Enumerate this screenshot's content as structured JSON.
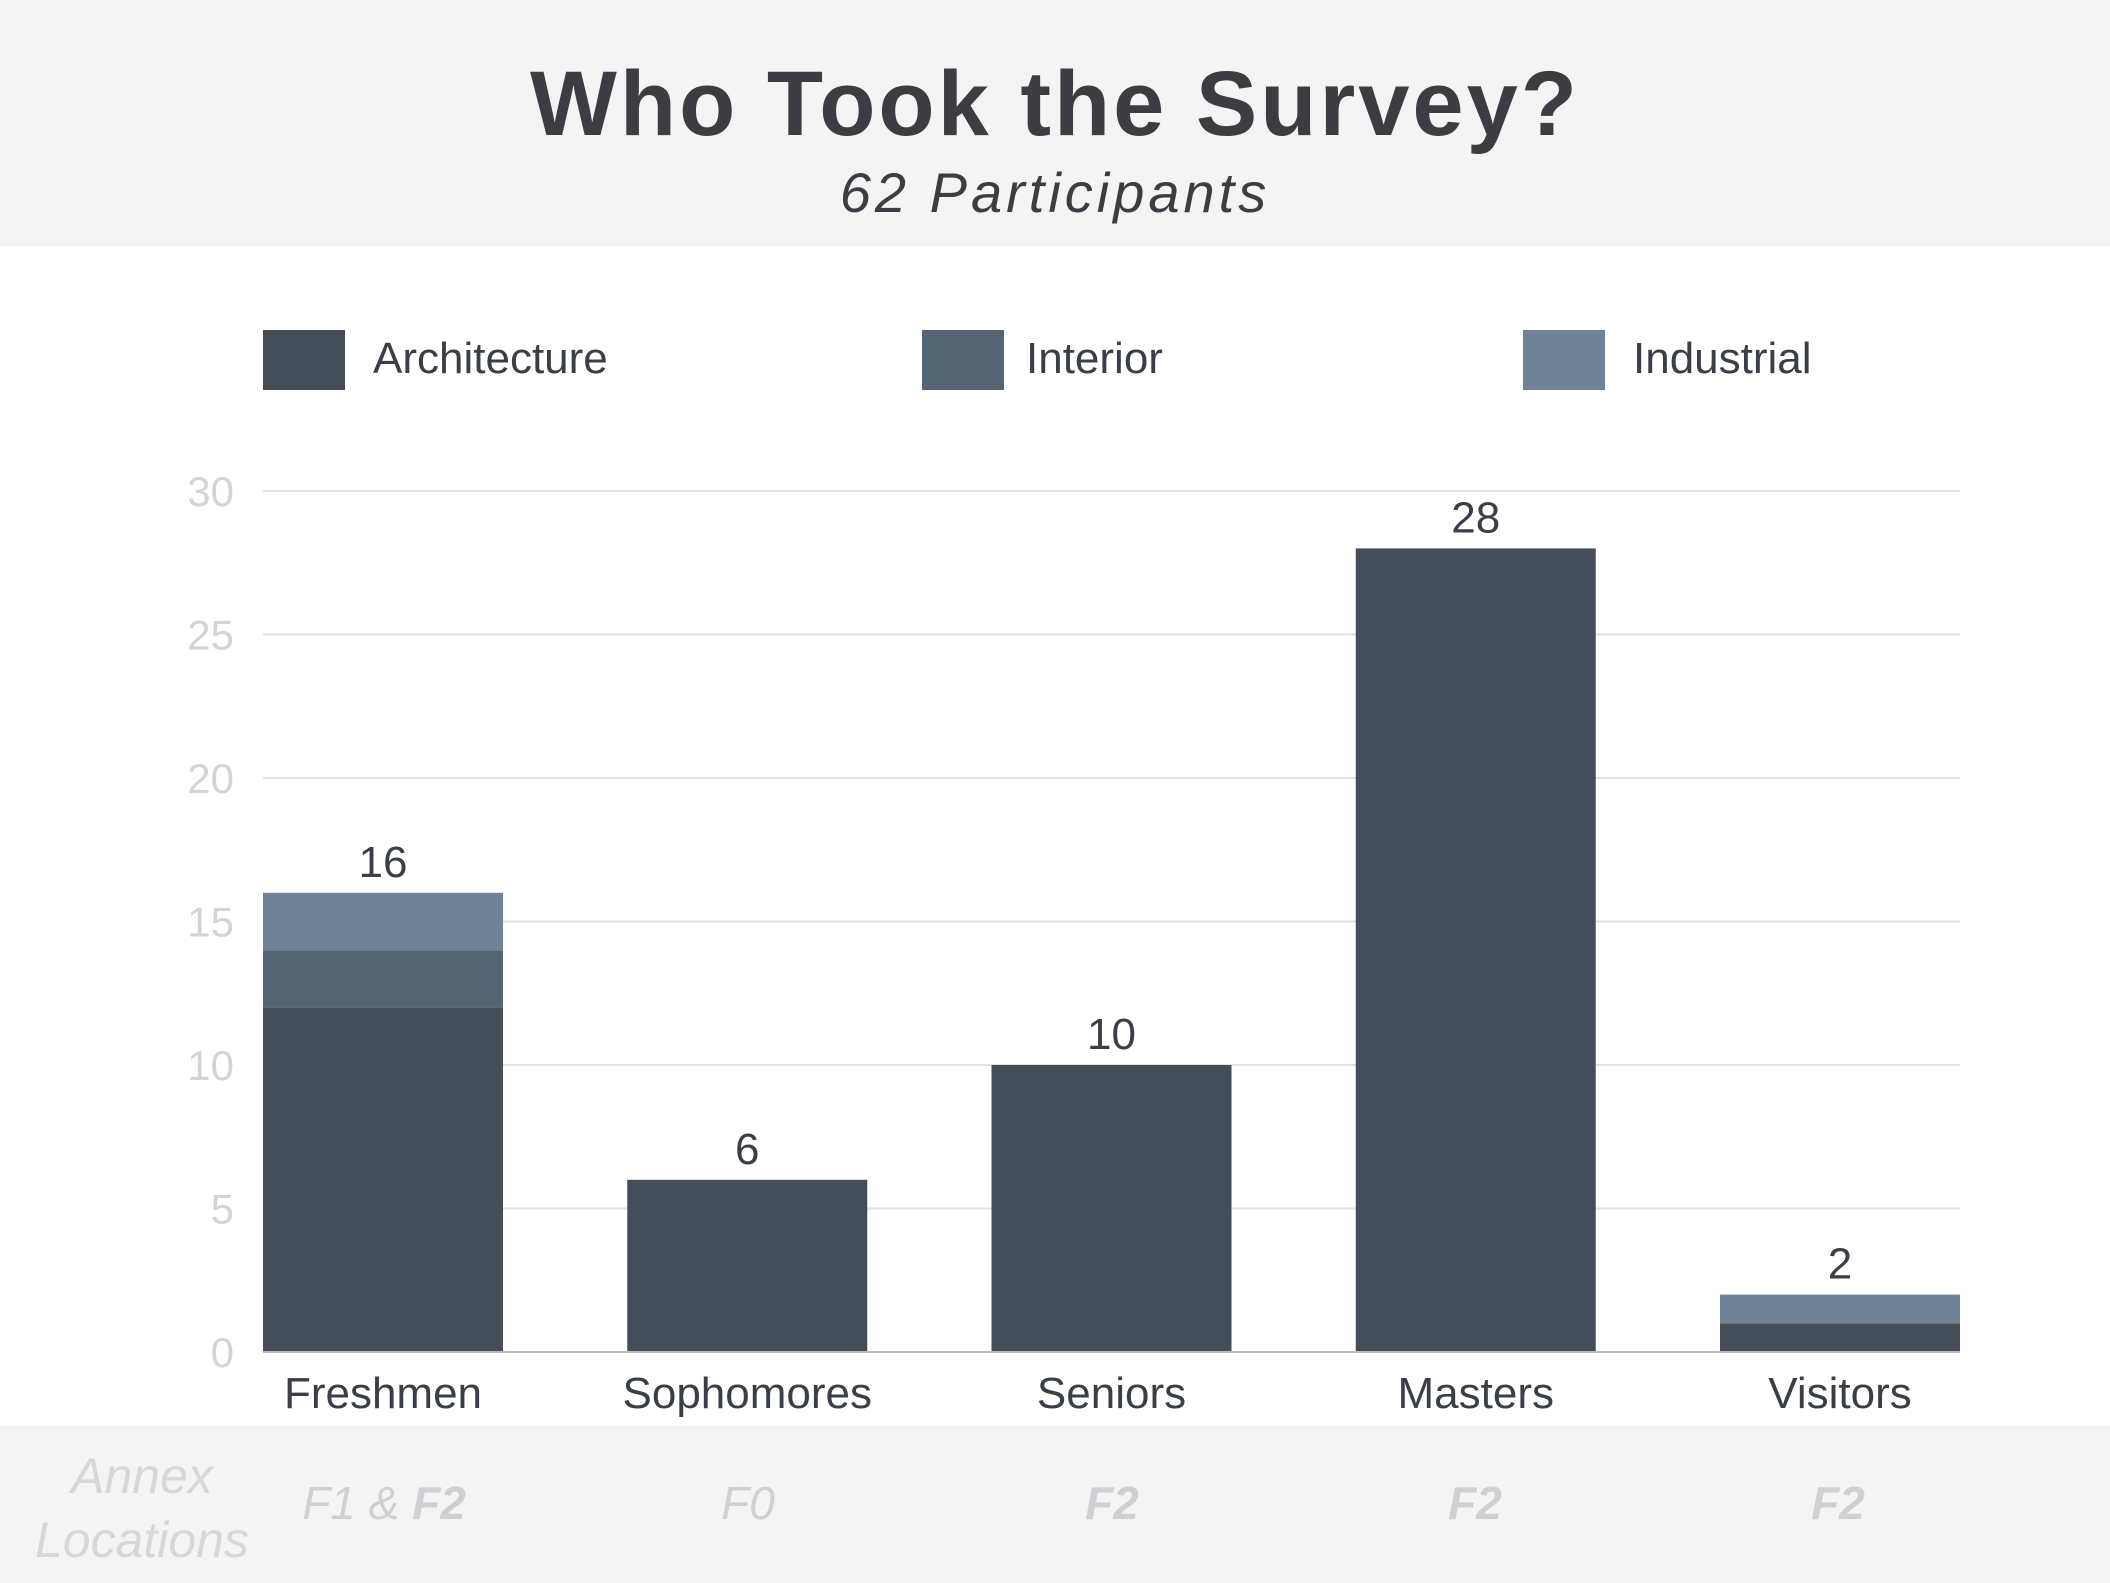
{
  "chart_data": {
    "type": "bar",
    "stacked": true,
    "title": "Who Took the Survey?",
    "subtitle": "62 Participants",
    "categories": [
      "Freshmen",
      "Sophomores",
      "Seniors",
      "Masters",
      "Visitors"
    ],
    "series": [
      {
        "name": "Architecture",
        "color": "#454e58",
        "values": [
          12,
          6,
          10,
          28,
          1
        ]
      },
      {
        "name": "Interior",
        "color": "#556573",
        "values": [
          2,
          0,
          0,
          0,
          0
        ]
      },
      {
        "name": "Industrial",
        "color": "#6e8397",
        "values": [
          2,
          0,
          0,
          0,
          1
        ]
      }
    ],
    "totals": [
      16,
      6,
      10,
      28,
      2
    ],
    "ylim": [
      0,
      30
    ],
    "yticks": [
      0,
      5,
      10,
      15,
      20,
      25,
      30
    ],
    "xlabel": "",
    "ylabel": "",
    "grid": true,
    "legend_position": "top"
  },
  "footer": {
    "label_line1": "Annex",
    "label_line2": "Locations",
    "locations": [
      {
        "normal": "F1 & ",
        "bold": "F2"
      },
      {
        "normal": "F0",
        "bold": ""
      },
      {
        "normal": "",
        "bold": "F2"
      },
      {
        "normal": "",
        "bold": "F2"
      },
      {
        "normal": "",
        "bold": "F2"
      }
    ]
  },
  "colors": {
    "header_bg": "#f4f4f4",
    "gridline": "#e2e2e2",
    "tick_label": "#d3d4d7",
    "text": "#3a3f47"
  }
}
